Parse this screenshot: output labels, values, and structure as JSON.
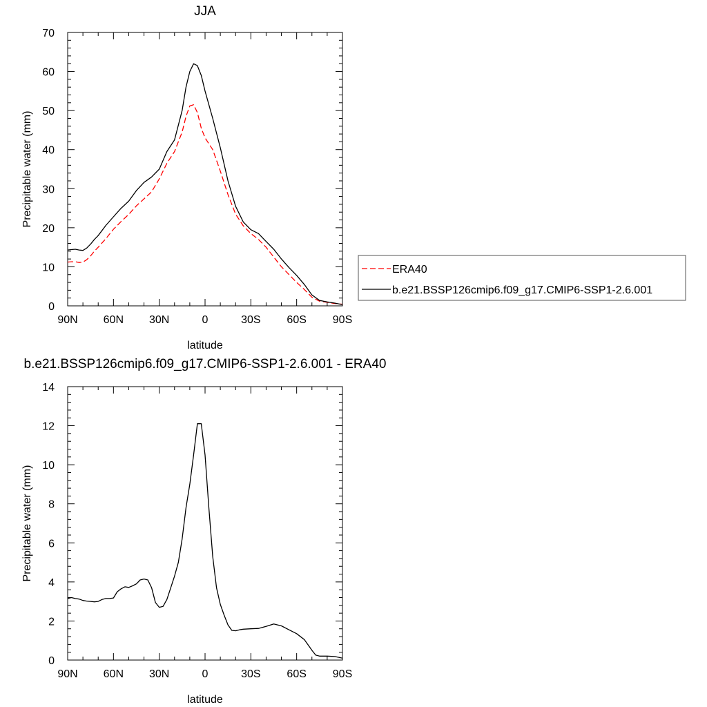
{
  "chart_data": [
    {
      "type": "line",
      "title": "JJA",
      "xlabel": "latitude",
      "ylabel": "Precipitable water (mm)",
      "xlim": [
        90,
        -90
      ],
      "ylim": [
        0,
        70
      ],
      "x_ticks": [
        {
          "value": 90,
          "label": "90N"
        },
        {
          "value": 60,
          "label": "60N"
        },
        {
          "value": 30,
          "label": "30N"
        },
        {
          "value": 0,
          "label": "0"
        },
        {
          "value": -30,
          "label": "30S"
        },
        {
          "value": -60,
          "label": "60S"
        },
        {
          "value": -90,
          "label": "90S"
        }
      ],
      "y_ticks": [
        0,
        10,
        20,
        30,
        40,
        50,
        60,
        70
      ],
      "grid": false,
      "legend_position": "right, outside plot",
      "series": [
        {
          "name": "ERA40",
          "color": "#ff0000",
          "dash": "dashed",
          "x": [
            90,
            87.5,
            85,
            82.5,
            80,
            77.5,
            75,
            72.5,
            70,
            65,
            60,
            55,
            50,
            45,
            40,
            35,
            30,
            25,
            20,
            15,
            12.5,
            10,
            7.5,
            5,
            2.5,
            0,
            -5,
            -10,
            -15,
            -20,
            -25,
            -30,
            -35,
            -40,
            -45,
            -50,
            -55,
            -60,
            -65,
            -70,
            -75,
            -80,
            -85,
            -90
          ],
          "values": [
            11.2,
            11.3,
            11.3,
            11.1,
            11.2,
            11.8,
            12.8,
            14.0,
            15.0,
            17.2,
            19.6,
            21.6,
            23.4,
            25.6,
            27.4,
            29.2,
            32.5,
            36.5,
            39.5,
            44.5,
            48.5,
            51.2,
            51.5,
            49.5,
            45.5,
            43.0,
            40.0,
            34.5,
            28.5,
            23.5,
            20.5,
            18.5,
            17.0,
            15.0,
            12.5,
            10.0,
            8.0,
            6.0,
            4.2,
            2.2,
            1.2,
            0.9,
            0.6,
            0.4
          ]
        },
        {
          "name": "b.e21.BSSP126cmip6.f09_g17.CMIP6-SSP1-2.6.001",
          "color": "#000000",
          "dash": "solid",
          "x": [
            90,
            87.5,
            85,
            82.5,
            80,
            77.5,
            75,
            72.5,
            70,
            65,
            60,
            55,
            50,
            45,
            40,
            35,
            30,
            25,
            20,
            15,
            12.5,
            10,
            7.5,
            5,
            2.5,
            0,
            -5,
            -10,
            -15,
            -20,
            -25,
            -30,
            -35,
            -40,
            -45,
            -50,
            -55,
            -60,
            -65,
            -70,
            -75,
            -80,
            -85,
            -90
          ],
          "values": [
            14.3,
            14.4,
            14.5,
            14.3,
            14.2,
            14.8,
            15.8,
            17.0,
            18.0,
            20.6,
            22.8,
            25.0,
            26.8,
            29.5,
            31.6,
            33.0,
            35.0,
            39.5,
            42.5,
            50.0,
            56.0,
            60.0,
            62.0,
            61.5,
            59.0,
            55.0,
            48.0,
            40.5,
            32.0,
            25.5,
            21.5,
            19.5,
            18.5,
            16.5,
            14.5,
            12.0,
            9.8,
            7.8,
            5.5,
            2.8,
            1.4,
            1.0,
            0.7,
            0.3
          ]
        }
      ]
    },
    {
      "type": "line",
      "title": "b.e21.BSSP126cmip6.f09_g17.CMIP6-SSP1-2.6.001 - ERA40",
      "xlabel": "latitude",
      "ylabel": "Precipitable water (mm)",
      "xlim": [
        90,
        -90
      ],
      "ylim": [
        0,
        14
      ],
      "x_ticks": [
        {
          "value": 90,
          "label": "90N"
        },
        {
          "value": 60,
          "label": "60N"
        },
        {
          "value": 30,
          "label": "30N"
        },
        {
          "value": 0,
          "label": "0"
        },
        {
          "value": -30,
          "label": "30S"
        },
        {
          "value": -60,
          "label": "60S"
        },
        {
          "value": -90,
          "label": "90S"
        }
      ],
      "y_ticks": [
        0,
        2,
        4,
        6,
        8,
        10,
        12,
        14
      ],
      "grid": false,
      "series": [
        {
          "color": "#000000",
          "dash": "solid",
          "x": [
            90,
            87.5,
            85,
            82.5,
            80,
            77.5,
            75,
            72.5,
            70,
            67.5,
            65,
            62.5,
            60,
            57.5,
            55,
            52.5,
            50,
            47.5,
            45,
            42.5,
            40,
            37.5,
            35,
            32.5,
            30,
            27.5,
            25,
            22.5,
            20,
            17.5,
            15,
            12.5,
            10,
            7.5,
            5,
            2.5,
            0,
            -2.5,
            -5,
            -7.5,
            -10,
            -12.5,
            -15,
            -17.5,
            -20,
            -22.5,
            -25,
            -30,
            -35,
            -40,
            -45,
            -50,
            -55,
            -60,
            -65,
            -70,
            -72.5,
            -75,
            -80,
            -85,
            -90
          ],
          "values": [
            3.15,
            3.2,
            3.15,
            3.12,
            3.05,
            3.02,
            3.0,
            2.98,
            3.0,
            3.1,
            3.15,
            3.15,
            3.18,
            3.5,
            3.65,
            3.75,
            3.72,
            3.8,
            3.9,
            4.1,
            4.15,
            4.1,
            3.7,
            2.95,
            2.7,
            2.75,
            3.1,
            3.7,
            4.3,
            5.0,
            6.2,
            7.8,
            9.0,
            10.5,
            12.1,
            12.1,
            10.5,
            7.8,
            5.3,
            3.7,
            2.85,
            2.3,
            1.8,
            1.52,
            1.5,
            1.55,
            1.58,
            1.6,
            1.62,
            1.72,
            1.85,
            1.75,
            1.55,
            1.35,
            1.05,
            0.5,
            0.25,
            0.2,
            0.2,
            0.18,
            0.1
          ]
        }
      ]
    }
  ]
}
